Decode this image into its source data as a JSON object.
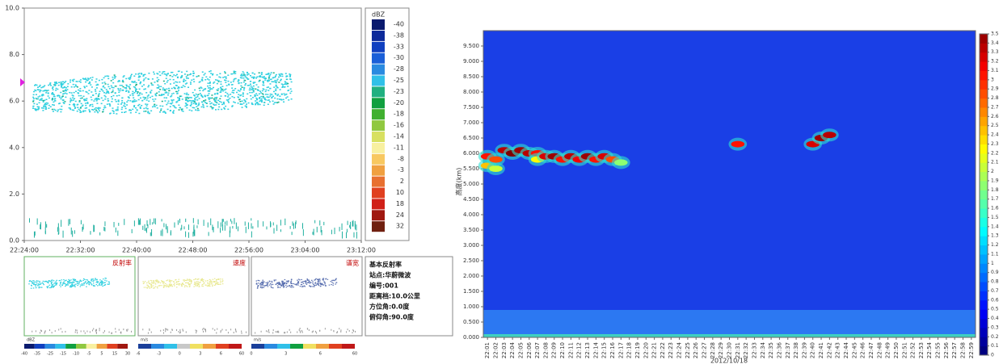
{
  "chart_data": [
    {
      "type": "radar-time-height",
      "ylim": [
        0,
        10
      ],
      "yticks": [
        {
          "value": 0,
          "label": "0.0"
        },
        {
          "value": 2,
          "label": "2.0"
        },
        {
          "value": 4,
          "label": "4.0"
        },
        {
          "value": 6,
          "label": "6.0"
        },
        {
          "value": 8,
          "label": "8.0"
        },
        {
          "value": 10,
          "label": "10.0"
        }
      ],
      "xticks": [
        "22:24:00",
        "22:32:00",
        "22:40:00",
        "22:48:00",
        "22:56:00",
        "23:04:00",
        "23:12:00"
      ],
      "colorbar": {
        "title": "dBZ",
        "levels": [
          -40,
          -38,
          -33,
          -30,
          -28,
          -25,
          -23,
          -20,
          -18,
          -16,
          -14,
          -11,
          -8,
          -3,
          2,
          10,
          18,
          24,
          32
        ],
        "colors": [
          "#0a1a6e",
          "#0d2a9a",
          "#1040c0",
          "#1a5fd8",
          "#2a8ae0",
          "#30c0e8",
          "#20b080",
          "#10a040",
          "#40b030",
          "#90c840",
          "#d8e060",
          "#f8f0a0",
          "#f8c860",
          "#f0a040",
          "#e87030",
          "#e04020",
          "#d02018",
          "#a01810",
          "#702010"
        ]
      }
    },
    {
      "type": "heatmap",
      "y_label": "高度(km)",
      "x_label": "2012/10/18",
      "ylim": [
        0,
        10
      ],
      "yticks": [
        {
          "value": 0,
          "label": "0.000"
        },
        {
          "value": 0.5,
          "label": "0.500"
        },
        {
          "value": 1,
          "label": "1.000"
        },
        {
          "value": 1.5,
          "label": "1.500"
        },
        {
          "value": 2,
          "label": "2.000"
        },
        {
          "value": 2.5,
          "label": "2.500"
        },
        {
          "value": 3,
          "label": "3.000"
        },
        {
          "value": 3.5,
          "label": "3.500"
        },
        {
          "value": 4,
          "label": "4.000"
        },
        {
          "value": 4.5,
          "label": "4.500"
        },
        {
          "value": 5,
          "label": "5.000"
        },
        {
          "value": 5.5,
          "label": "5.500"
        },
        {
          "value": 6,
          "label": "6.000"
        },
        {
          "value": 6.5,
          "label": "6.500"
        },
        {
          "value": 7,
          "label": "7.000"
        },
        {
          "value": 7.5,
          "label": "7.500"
        },
        {
          "value": 8,
          "label": "8.000"
        },
        {
          "value": 8.5,
          "label": "8.500"
        },
        {
          "value": 9,
          "label": "9.000"
        },
        {
          "value": 9.5,
          "label": "9.500"
        }
      ],
      "categories": [
        "22:01",
        "22:02",
        "22:03",
        "22:04",
        "22:05",
        "22:06",
        "22:07",
        "22:08",
        "22:09",
        "22:10",
        "22:11",
        "22:12",
        "22:13",
        "22:14",
        "22:15",
        "22:16",
        "22:17",
        "22:18",
        "22:19",
        "22:20",
        "22:21",
        "22:22",
        "22:23",
        "22:24",
        "22:25",
        "22:26",
        "22:27",
        "22:28",
        "22:29",
        "22:30",
        "22:31",
        "22:32",
        "22:33",
        "22:34",
        "22:35",
        "22:36",
        "22:37",
        "22:38",
        "22:39",
        "22:40",
        "22:41",
        "22:42",
        "22:43",
        "22:44",
        "22:45",
        "22:46",
        "22:47",
        "22:48",
        "22:49",
        "22:50",
        "22:51",
        "22:52",
        "22:53",
        "22:54",
        "22:55",
        "22:56",
        "22:57",
        "22:58",
        "22:59"
      ],
      "cells": [
        {
          "x": 0,
          "y": 5.6,
          "value": 2.4
        },
        {
          "x": 0,
          "y": 5.9,
          "value": 3.0
        },
        {
          "x": 1,
          "y": 5.5,
          "value": 2.0
        },
        {
          "x": 1,
          "y": 5.8,
          "value": 2.8
        },
        {
          "x": 2,
          "y": 6.1,
          "value": 3.3
        },
        {
          "x": 3,
          "y": 6.0,
          "value": 3.5
        },
        {
          "x": 4,
          "y": 6.1,
          "value": 3.4
        },
        {
          "x": 5,
          "y": 6.0,
          "value": 3.3
        },
        {
          "x": 6,
          "y": 6.0,
          "value": 3.0
        },
        {
          "x": 6,
          "y": 5.8,
          "value": 2.2
        },
        {
          "x": 7,
          "y": 5.9,
          "value": 3.2
        },
        {
          "x": 8,
          "y": 5.9,
          "value": 3.4
        },
        {
          "x": 9,
          "y": 5.8,
          "value": 3.0
        },
        {
          "x": 10,
          "y": 5.9,
          "value": 3.3
        },
        {
          "x": 11,
          "y": 5.8,
          "value": 3.1
        },
        {
          "x": 12,
          "y": 5.9,
          "value": 3.4
        },
        {
          "x": 13,
          "y": 5.8,
          "value": 3.0
        },
        {
          "x": 14,
          "y": 5.9,
          "value": 3.2
        },
        {
          "x": 15,
          "y": 5.8,
          "value": 2.8
        },
        {
          "x": 16,
          "y": 5.7,
          "value": 1.8
        },
        {
          "x": 30,
          "y": 6.3,
          "value": 3.0
        },
        {
          "x": 39,
          "y": 6.3,
          "value": 3.2
        },
        {
          "x": 40,
          "y": 6.5,
          "value": 3.4
        },
        {
          "x": 41,
          "y": 6.6,
          "value": 3.3
        }
      ],
      "colorbar_ticks": [
        0,
        0.1,
        0.2,
        0.3,
        0.4,
        0.5,
        0.6,
        0.7,
        0.8,
        0.9,
        1,
        1.1,
        1.2,
        1.3,
        1.4,
        1.5,
        1.6,
        1.7,
        1.8,
        1.9,
        2,
        2.1,
        2.2,
        2.3,
        2.4,
        2.5,
        2.6,
        2.7,
        2.8,
        2.9,
        3,
        3.1,
        3.2,
        3.3,
        3.4,
        3.5
      ]
    }
  ],
  "thumbnails": [
    {
      "title": "反射率",
      "unit": "dBZ",
      "ticks": [
        -40,
        -35,
        -25,
        -15,
        -10,
        -5,
        5,
        15,
        30
      ],
      "colors": [
        "#0a1a6e",
        "#1040c0",
        "#2a8ae0",
        "#30c0e8",
        "#10a040",
        "#90c840",
        "#f8f0a0",
        "#f0a040",
        "#e04020",
        "#a01810"
      ]
    },
    {
      "title": "速度",
      "unit": "m/s",
      "ticks": [
        -6,
        -3,
        0,
        3,
        6,
        60
      ],
      "colors": [
        "#1a3f9a",
        "#2a8ae0",
        "#30c0e8",
        "#c8c8c8",
        "#f0e060",
        "#f0a040",
        "#e04020",
        "#c01818"
      ]
    },
    {
      "title": "谱宽",
      "unit": "m/s",
      "ticks": [
        0,
        3,
        6,
        60
      ],
      "colors": [
        "#1a3f9a",
        "#2a8ae0",
        "#30c0e8",
        "#10a040",
        "#f0e060",
        "#f0a040",
        "#e04020",
        "#c01818"
      ]
    }
  ],
  "info": {
    "title": "基本反射率",
    "lines": [
      "站点:华蔚微波",
      "编号:001",
      "距离档:10.0公里",
      "方位角:0.0度",
      "俯仰角:90.0度"
    ]
  }
}
